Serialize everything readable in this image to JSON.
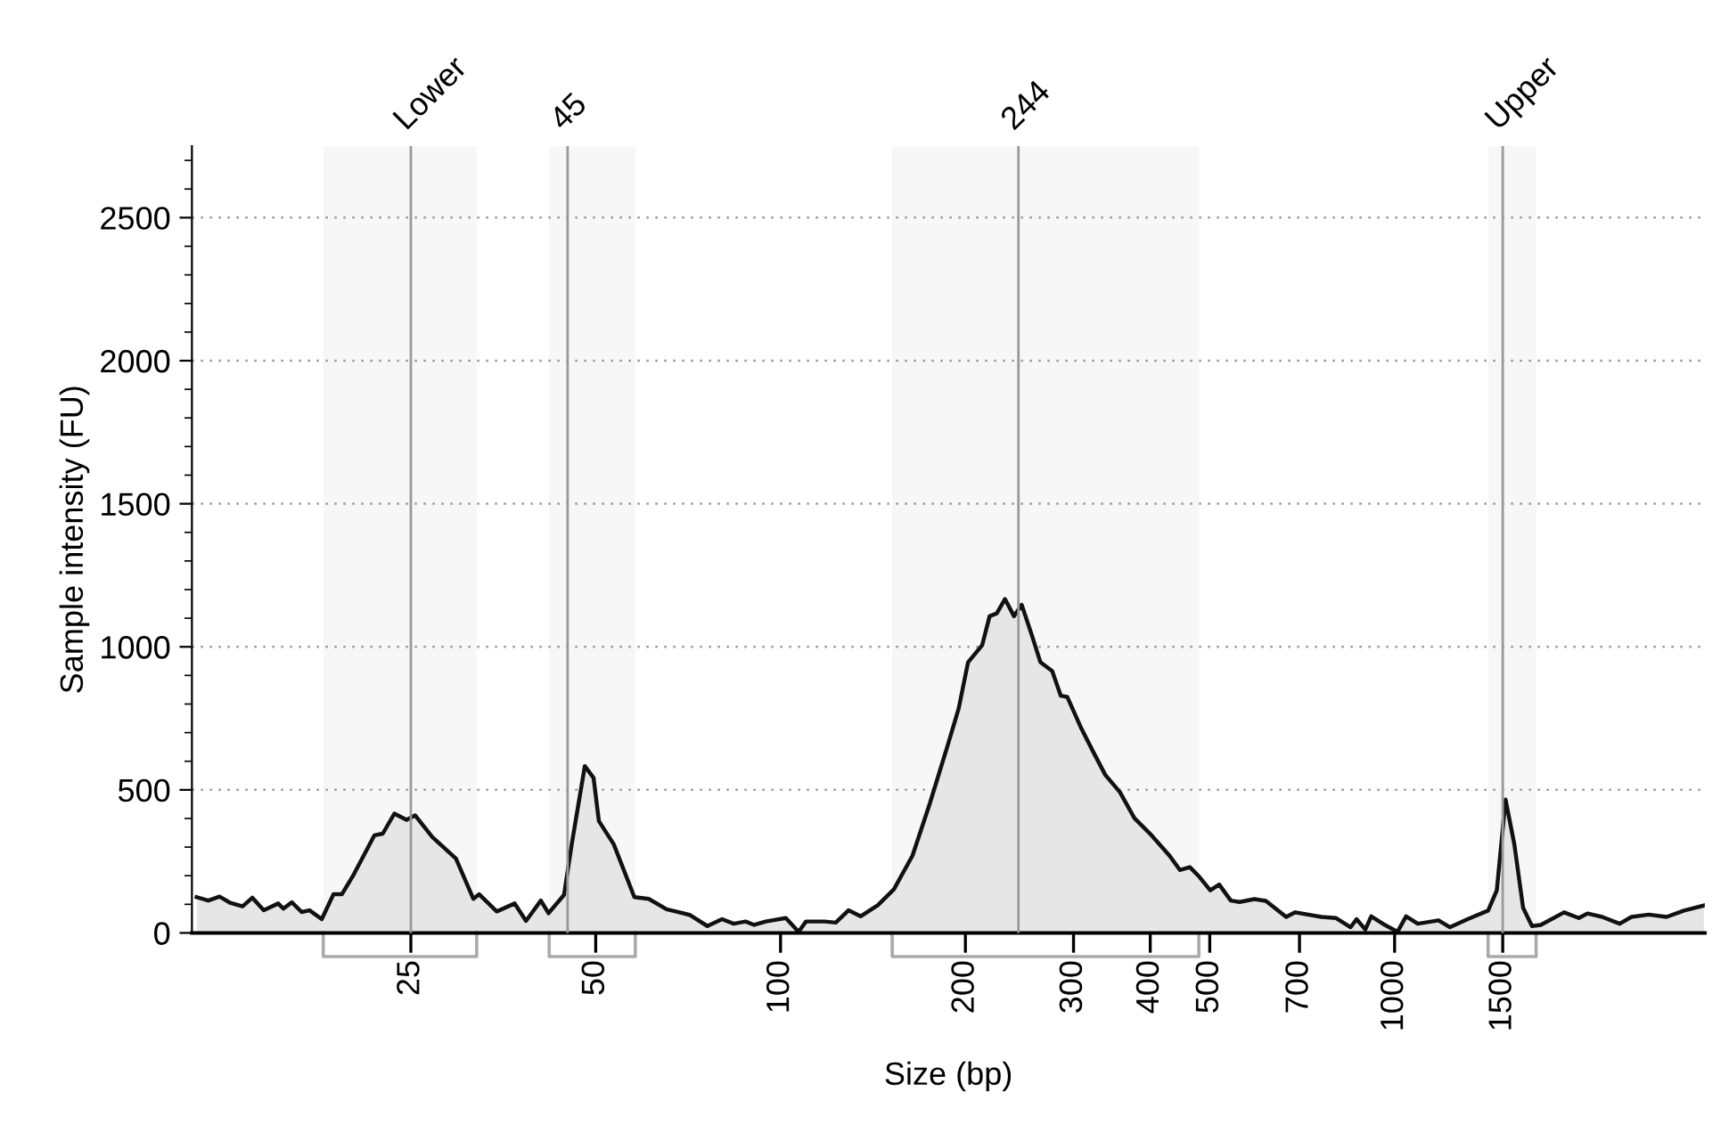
{
  "chart_data": {
    "type": "area",
    "xlabel": "Size (bp)",
    "ylabel": "Sample intensity (FU)",
    "log": "x",
    "xlim": [
      11,
      3200
    ],
    "ylim": [
      0,
      2750
    ],
    "xticks": [
      25,
      50,
      100,
      200,
      300,
      400,
      500,
      700,
      1000,
      1500
    ],
    "yticks": [
      0,
      500,
      1000,
      1500,
      2000,
      2500
    ],
    "grid": "y",
    "series": [
      {
        "color": "#e5e6e5",
        "x": [
          11.2,
          11.7,
          12.2,
          12.7,
          13.3,
          13.8,
          14.4,
          15.2,
          15.5,
          16.0,
          16.6,
          17.1,
          17.9,
          18.7,
          19.3,
          20.2,
          21.8,
          22.5,
          23.5,
          24.6,
          25.4,
          27.1,
          29.6,
          31.6,
          32.3,
          34.5,
          36.9,
          38.5,
          40.7,
          41.9,
          44.4,
          45.7,
          48.0,
          49.6,
          50.6,
          53.5,
          57.8,
          61.0,
          65.2,
          71.1,
          76.0,
          80.3,
          83.9,
          87.7,
          90.6,
          94.6,
          102,
          107,
          110,
          118,
          123,
          129,
          135,
          144,
          153,
          164,
          175,
          187,
          195,
          202,
          213,
          219,
          225,
          232,
          240,
          247,
          257,
          265,
          277,
          286,
          293,
          309,
          323,
          338,
          357,
          377,
          402,
          430,
          447,
          464,
          479,
          501,
          518,
          541,
          559,
          591,
          617,
          666,
          689,
          760,
          803,
          848,
          867,
          896,
          916,
          957,
          1011,
          1044,
          1091,
          1179,
          1231,
          1315,
          1420,
          1467,
          1516,
          1567,
          1619,
          1674,
          1730,
          1888,
          1995,
          2062,
          2178,
          2326,
          2430,
          2595,
          2772,
          2960,
          3190
        ],
        "values": [
          125,
          113,
          127,
          105,
          93,
          123,
          79,
          103,
          85,
          107,
          73,
          79,
          48,
          135,
          135,
          206,
          341,
          347,
          417,
          395,
          411,
          335,
          260,
          119,
          135,
          75,
          103,
          42,
          113,
          69,
          133,
          310,
          583,
          542,
          391,
          310,
          125,
          119,
          83,
          63,
          24,
          48,
          32,
          40,
          28,
          40,
          52,
          4,
          40,
          40,
          36,
          79,
          58,
          97,
          153,
          270,
          452,
          653,
          784,
          946,
          1006,
          1107,
          1117,
          1167,
          1107,
          1147,
          1036,
          946,
          915,
          829,
          825,
          714,
          633,
          552,
          492,
          401,
          341,
          270,
          220,
          230,
          200,
          149,
          169,
          113,
          108,
          118,
          112,
          56,
          72,
          56,
          52,
          20,
          48,
          12,
          58,
          32,
          4,
          58,
          32,
          44,
          20,
          48,
          78,
          149,
          466,
          309,
          88,
          24,
          28,
          72,
          52,
          68,
          56,
          32,
          56,
          64,
          56,
          78,
          96
        ]
      }
    ],
    "ref_lines": [
      {
        "axis": "x",
        "value": 25,
        "label": "Lower",
        "color": "#999999"
      },
      {
        "axis": "x",
        "value": 45,
        "label": "45",
        "color": "#999999"
      },
      {
        "axis": "x",
        "value": 244,
        "label": "244",
        "color": "#999999"
      },
      {
        "axis": "x",
        "value": 1500,
        "label": "Upper",
        "color": "#999999"
      }
    ],
    "bands": [
      {
        "axis": "x",
        "from": 18,
        "to": 32,
        "color": "#f7f7f7"
      },
      {
        "axis": "x",
        "from": 42,
        "to": 58,
        "color": "#f7f7f7"
      },
      {
        "axis": "x",
        "from": 152,
        "to": 480,
        "color": "#f7f7f7"
      },
      {
        "axis": "x",
        "from": 1420,
        "to": 1700,
        "color": "#f7f7f7"
      }
    ]
  }
}
